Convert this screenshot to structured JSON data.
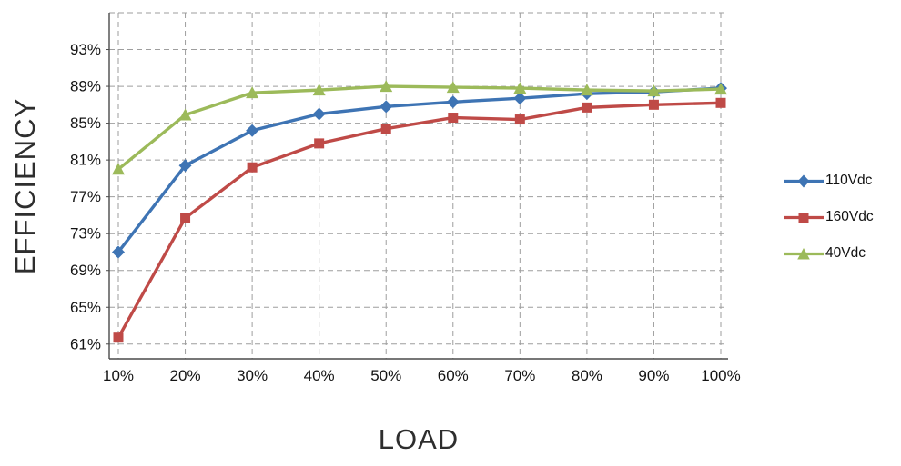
{
  "chart_data": {
    "type": "line",
    "title": "",
    "xlabel": "LOAD",
    "ylabel": "EFFICIENCY",
    "x_categories": [
      "10%",
      "20%",
      "30%",
      "40%",
      "50%",
      "60%",
      "70%",
      "80%",
      "90%",
      "100%"
    ],
    "y_axis": {
      "min": 59.4,
      "max": 97,
      "tick_values": [
        61,
        65,
        69,
        73,
        77,
        81,
        85,
        89,
        93
      ],
      "tick_labels": [
        "61%",
        "65%",
        "69%",
        "73%",
        "77%",
        "81%",
        "85%",
        "89%",
        "93%"
      ],
      "grid_values": [
        61,
        65,
        69,
        73,
        77,
        81,
        85,
        89,
        93,
        97
      ]
    },
    "grid": "dashed",
    "legend_position": "right",
    "colors": {
      "grid": "#9e9e9e",
      "axis": "#4a4a4a",
      "text": "#141414",
      "background": "#ffffff"
    },
    "series": [
      {
        "name": "110Vdc",
        "marker": "diamond",
        "color": "#3E74B4",
        "values": [
          71.0,
          80.4,
          84.2,
          86.0,
          86.8,
          87.3,
          87.7,
          88.2,
          88.4,
          88.8
        ]
      },
      {
        "name": "160Vdc",
        "marker": "square",
        "color": "#BF4A47",
        "values": [
          61.7,
          74.7,
          80.2,
          82.8,
          84.4,
          85.6,
          85.4,
          86.7,
          87.0,
          87.2
        ]
      },
      {
        "name": "40Vdc",
        "marker": "triangle",
        "color": "#9CBA5A",
        "values": [
          80.0,
          85.9,
          88.3,
          88.6,
          89.0,
          88.9,
          88.8,
          88.6,
          88.5,
          88.7
        ]
      }
    ]
  }
}
